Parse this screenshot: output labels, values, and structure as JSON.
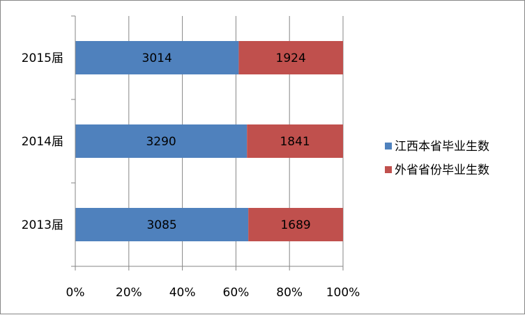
{
  "chart_data": {
    "type": "bar",
    "orientation": "horizontal",
    "stacking": "percent",
    "categories": [
      "2015届",
      "2014届",
      "2013届"
    ],
    "series": [
      {
        "name": "江西本省毕业生数",
        "color": "#4F81BD",
        "values": [
          3014,
          3290,
          3085
        ]
      },
      {
        "name": "外省省份毕业生数",
        "color": "#C0504D",
        "values": [
          1924,
          1841,
          1689
        ]
      }
    ],
    "x_ticks": [
      "0%",
      "20%",
      "40%",
      "60%",
      "80%",
      "100%"
    ],
    "xlim": [
      0,
      100
    ],
    "grid": true,
    "legend_position": "right"
  }
}
